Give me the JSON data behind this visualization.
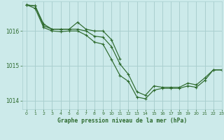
{
  "title": "Graphe pression niveau de la mer (hPa)",
  "background_color": "#cceaea",
  "grid_color": "#aacfcf",
  "line_color": "#2d6a2d",
  "xlim": [
    -0.5,
    23
  ],
  "ylim": [
    1013.75,
    1016.85
  ],
  "yticks": [
    1014,
    1015,
    1016
  ],
  "xticks": [
    0,
    1,
    2,
    3,
    4,
    5,
    6,
    7,
    8,
    9,
    10,
    11,
    12,
    13,
    14,
    15,
    16,
    17,
    18,
    19,
    20,
    21,
    22,
    23
  ],
  "series": [
    {
      "x": [
        0,
        1,
        2,
        3,
        4,
        5,
        6,
        7,
        8,
        9,
        10,
        11
      ],
      "y": [
        1016.75,
        1016.72,
        1016.2,
        1016.05,
        1016.05,
        1016.05,
        1016.25,
        1016.05,
        1016.0,
        1016.0,
        1015.75,
        1015.2
      ]
    },
    {
      "x": [
        0,
        1,
        2,
        3,
        4,
        5,
        6,
        7,
        8,
        9,
        10,
        11,
        12,
        13,
        14,
        15,
        16,
        17,
        18,
        19,
        20,
        21,
        22,
        23
      ],
      "y": [
        1016.75,
        1016.72,
        1016.15,
        1016.05,
        1016.05,
        1016.05,
        1016.05,
        1016.0,
        1015.85,
        1015.82,
        1015.55,
        1015.05,
        1014.75,
        1014.25,
        1014.15,
        1014.42,
        1014.38,
        1014.38,
        1014.38,
        1014.5,
        1014.45,
        1014.65,
        1014.88,
        1014.88
      ]
    },
    {
      "x": [
        0,
        1,
        2,
        3,
        4,
        5,
        6,
        7,
        8,
        9,
        10,
        11,
        12,
        13,
        14,
        15,
        16,
        17,
        18,
        19,
        20,
        21,
        22,
        23
      ],
      "y": [
        1016.75,
        1016.65,
        1016.1,
        1016.0,
        1015.98,
        1016.0,
        1016.0,
        1015.88,
        1015.68,
        1015.62,
        1015.18,
        1014.72,
        1014.55,
        1014.1,
        1014.05,
        1014.3,
        1014.35,
        1014.35,
        1014.35,
        1014.42,
        1014.38,
        1014.58,
        1014.88,
        1014.88
      ]
    }
  ]
}
